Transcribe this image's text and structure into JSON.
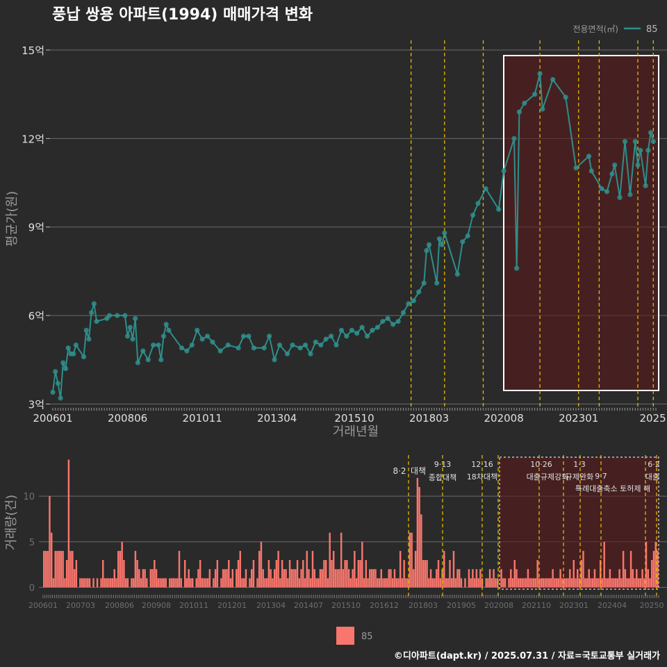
{
  "title": "풍납 쌍용 아파트(1994) 매매가격 변화",
  "footer": "©디아파트(dapt.kr) / 2025.07.31 / 자료=국토교통부 실거래가",
  "legend_top": {
    "title": "전용면적(㎡)",
    "label": "85"
  },
  "legend_bottom": {
    "label": "85"
  },
  "colors": {
    "background": "#2a2a2a",
    "line": "#2e8f8c",
    "bar": "#f8766d",
    "highlight_fill": "#5a1a1a",
    "policy_line": "#e6b800"
  },
  "chart_data": [
    {
      "type": "line",
      "title": "풍납 쌍용 아파트(1994) 매매가격 변화",
      "xlabel": "거래년월",
      "ylabel": "평균가(원)",
      "ylim": [
        2.8,
        15.4
      ],
      "yticks": [
        3,
        6,
        9,
        12,
        15
      ],
      "ytick_labels": [
        "3억",
        "6억",
        "9억",
        "12억",
        "15억"
      ],
      "xticks": [
        "200601",
        "200806",
        "201011",
        "201304",
        "201510",
        "201803",
        "202008",
        "202301",
        "2025"
      ],
      "series": [
        {
          "name": "85",
          "points": [
            [
              "2006-01",
              3.4
            ],
            [
              "2006-02",
              4.1
            ],
            [
              "2006-03",
              3.7
            ],
            [
              "2006-04",
              3.2
            ],
            [
              "2006-05",
              4.4
            ],
            [
              "2006-06",
              4.2
            ],
            [
              "2006-07",
              4.9
            ],
            [
              "2006-08",
              4.7
            ],
            [
              "2006-09",
              4.7
            ],
            [
              "2006-10",
              5.0
            ],
            [
              "2007-01",
              4.6
            ],
            [
              "2007-02",
              5.5
            ],
            [
              "2007-03",
              5.2
            ],
            [
              "2007-04",
              6.1
            ],
            [
              "2007-05",
              6.4
            ],
            [
              "2007-06",
              5.8
            ],
            [
              "2007-10",
              5.9
            ],
            [
              "2007-11",
              6.0
            ],
            [
              "2008-02",
              6.0
            ],
            [
              "2008-05",
              6.0
            ],
            [
              "2008-06",
              5.3
            ],
            [
              "2008-07",
              5.6
            ],
            [
              "2008-08",
              5.2
            ],
            [
              "2008-09",
              5.9
            ],
            [
              "2008-10",
              4.4
            ],
            [
              "2008-12",
              4.8
            ],
            [
              "2009-02",
              4.5
            ],
            [
              "2009-04",
              5.0
            ],
            [
              "2009-06",
              5.0
            ],
            [
              "2009-07",
              4.5
            ],
            [
              "2009-08",
              5.3
            ],
            [
              "2009-09",
              5.7
            ],
            [
              "2009-10",
              5.5
            ],
            [
              "2010-03",
              4.9
            ],
            [
              "2010-05",
              4.8
            ],
            [
              "2010-07",
              5.0
            ],
            [
              "2010-09",
              5.5
            ],
            [
              "2010-11",
              5.2
            ],
            [
              "2011-01",
              5.3
            ],
            [
              "2011-03",
              5.1
            ],
            [
              "2011-06",
              4.8
            ],
            [
              "2011-09",
              5.0
            ],
            [
              "2012-01",
              4.9
            ],
            [
              "2012-03",
              5.3
            ],
            [
              "2012-05",
              5.3
            ],
            [
              "2012-07",
              4.9
            ],
            [
              "2012-11",
              4.9
            ],
            [
              "2013-01",
              5.3
            ],
            [
              "2013-03",
              4.5
            ],
            [
              "2013-05",
              5.0
            ],
            [
              "2013-08",
              4.7
            ],
            [
              "2013-10",
              5.0
            ],
            [
              "2014-01",
              4.9
            ],
            [
              "2014-03",
              5.0
            ],
            [
              "2014-05",
              4.7
            ],
            [
              "2014-07",
              5.1
            ],
            [
              "2014-09",
              5.0
            ],
            [
              "2014-11",
              5.2
            ],
            [
              "2015-01",
              5.3
            ],
            [
              "2015-03",
              5.0
            ],
            [
              "2015-05",
              5.5
            ],
            [
              "2015-07",
              5.3
            ],
            [
              "2015-09",
              5.5
            ],
            [
              "2015-11",
              5.4
            ],
            [
              "2016-01",
              5.6
            ],
            [
              "2016-03",
              5.3
            ],
            [
              "2016-05",
              5.5
            ],
            [
              "2016-07",
              5.6
            ],
            [
              "2016-09",
              5.8
            ],
            [
              "2016-11",
              5.9
            ],
            [
              "2017-01",
              5.7
            ],
            [
              "2017-03",
              5.8
            ],
            [
              "2017-05",
              6.1
            ],
            [
              "2017-07",
              6.4
            ],
            [
              "2017-09",
              6.5
            ],
            [
              "2017-11",
              6.8
            ],
            [
              "2018-01",
              7.1
            ],
            [
              "2018-02",
              8.2
            ],
            [
              "2018-03",
              8.4
            ],
            [
              "2018-06",
              7.1
            ],
            [
              "2018-07",
              8.6
            ],
            [
              "2018-08",
              8.4
            ],
            [
              "2018-09",
              8.8
            ],
            [
              "2019-02",
              7.4
            ],
            [
              "2019-04",
              8.5
            ],
            [
              "2019-06",
              8.7
            ],
            [
              "2019-08",
              9.4
            ],
            [
              "2019-10",
              9.8
            ],
            [
              "2020-01",
              10.3
            ],
            [
              "2020-06",
              9.6
            ],
            [
              "2020-08",
              10.9
            ],
            [
              "2020-12",
              12.0
            ],
            [
              "2021-01",
              7.6
            ],
            [
              "2021-02",
              12.9
            ],
            [
              "2021-04",
              13.2
            ],
            [
              "2021-08",
              13.5
            ],
            [
              "2021-10",
              14.2
            ],
            [
              "2021-11",
              13.0
            ],
            [
              "2022-03",
              14.0
            ],
            [
              "2022-08",
              13.4
            ],
            [
              "2022-12",
              11.0
            ],
            [
              "2023-05",
              11.4
            ],
            [
              "2023-06",
              10.9
            ],
            [
              "2023-10",
              10.3
            ],
            [
              "2023-12",
              10.2
            ],
            [
              "2024-02",
              10.8
            ],
            [
              "2024-03",
              11.1
            ],
            [
              "2024-05",
              10.0
            ],
            [
              "2024-07",
              11.9
            ],
            [
              "2024-09",
              10.1
            ],
            [
              "2024-11",
              11.9
            ],
            [
              "2024-12",
              11.1
            ],
            [
              "2025-01",
              11.6
            ],
            [
              "2025-03",
              10.4
            ],
            [
              "2025-04",
              11.6
            ],
            [
              "2025-05",
              12.2
            ],
            [
              "2025-06",
              11.9
            ]
          ]
        }
      ]
    },
    {
      "type": "bar",
      "xlabel": "",
      "ylabel": "거래량(건)",
      "ylim": [
        -0.5,
        14.5
      ],
      "yticks": [
        0,
        5,
        10
      ],
      "ytick_labels": [
        "0",
        "5",
        "10"
      ],
      "xticks": [
        "200601",
        "200703",
        "200806",
        "200908",
        "201011",
        "201201",
        "201304",
        "201407",
        "201510",
        "201612",
        "201803",
        "201905",
        "202008",
        "202110",
        "202301",
        "202404",
        "20250"
      ],
      "series": [
        {
          "name": "85",
          "values": [
            4,
            4,
            4,
            10,
            6,
            1,
            4,
            4,
            4,
            4,
            4,
            1,
            3,
            14,
            4,
            4,
            2,
            3,
            0,
            1,
            1,
            1,
            1,
            1,
            1,
            0,
            1,
            0,
            1,
            0,
            1,
            3,
            1,
            1,
            1,
            1,
            1,
            2,
            1,
            4,
            4,
            5,
            3,
            1,
            1,
            0,
            1,
            1,
            4,
            3,
            2,
            1,
            2,
            2,
            1,
            0,
            2,
            2,
            3,
            2,
            1,
            1,
            1,
            1,
            1,
            0,
            1,
            1,
            1,
            1,
            1,
            4,
            1,
            0,
            3,
            1,
            2,
            1,
            1,
            0,
            1,
            2,
            3,
            1,
            1,
            1,
            1,
            2,
            0,
            1,
            2,
            3,
            0,
            1,
            2,
            2,
            2,
            3,
            1,
            2,
            0,
            2,
            3,
            4,
            1,
            1,
            2,
            0,
            1,
            2,
            3,
            0,
            1,
            4,
            5,
            2,
            1,
            1,
            3,
            2,
            1,
            2,
            3,
            4,
            1,
            3,
            2,
            2,
            1,
            3,
            2,
            2,
            2,
            3,
            1,
            2,
            3,
            1,
            4,
            2,
            1,
            4,
            2,
            1,
            1,
            2,
            2,
            3,
            3,
            1,
            6,
            3,
            4,
            2,
            2,
            2,
            6,
            2,
            3,
            3,
            2,
            1,
            2,
            4,
            1,
            3,
            3,
            5,
            1,
            3,
            1,
            2,
            2,
            2,
            2,
            1,
            1,
            2,
            1,
            1,
            1,
            2,
            2,
            1,
            2,
            1,
            1,
            4,
            1,
            3,
            1,
            1,
            6,
            6,
            2,
            4,
            12,
            11,
            8,
            3,
            3,
            3,
            1,
            2,
            1,
            1,
            2,
            3,
            1,
            2,
            4,
            1,
            1,
            3,
            1,
            4,
            1,
            2,
            2,
            1,
            0,
            1,
            0,
            2,
            1,
            2,
            1,
            2,
            1,
            2,
            1,
            0,
            1,
            1,
            2,
            1,
            2,
            1,
            1,
            0,
            2,
            1,
            1,
            0,
            1,
            2,
            1,
            3,
            2,
            1,
            1,
            1,
            1,
            1,
            2,
            1,
            1,
            1,
            1,
            3,
            1,
            1,
            1,
            1,
            1,
            1,
            1,
            2,
            1,
            1,
            1,
            2,
            1,
            1,
            1,
            1,
            2,
            1,
            3,
            1,
            2,
            1,
            3,
            4,
            1,
            1,
            2,
            1,
            1,
            2,
            1,
            1,
            3,
            1,
            5,
            1,
            1,
            2,
            1,
            1,
            1,
            1,
            2,
            1,
            4,
            2,
            1,
            1,
            4,
            2,
            1,
            2,
            1,
            1,
            2,
            1,
            5,
            2,
            1,
            3,
            4,
            5,
            4
          ]
        }
      ],
      "policies": [
        {
          "date": "8·2",
          "label": "대책"
        },
        {
          "date": "9·13",
          "label": "종합대책"
        },
        {
          "date": "12·16",
          "label": "18차대책"
        },
        {
          "date": "10·26",
          "label": "대출규제강화"
        },
        {
          "date": "1·3",
          "label": "규제완화"
        },
        {
          "date": "9·7",
          "label": "특례대출축소 토허제 해"
        },
        {
          "date": "6·2",
          "label": "대출"
        }
      ]
    }
  ]
}
